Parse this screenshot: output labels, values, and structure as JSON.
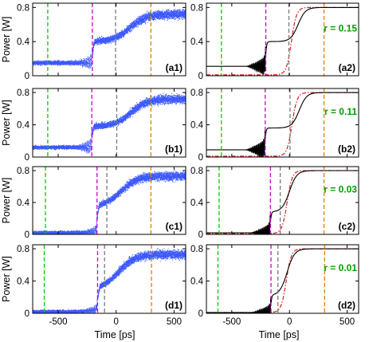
{
  "figure": {
    "ylabel": "Power [W]",
    "xlabel": "Time [ps]"
  },
  "colors": {
    "scatter": "#1a3cff",
    "simulation": "#000000",
    "reference": "#e81818",
    "marker_green": "#00cc00",
    "marker_magenta": "#cc00cc",
    "marker_gray": "#7a7a7a",
    "marker_orange": "#e08000"
  },
  "chart_data": {
    "type": "scatter",
    "xlim": [
      -720,
      600
    ],
    "ylim": [
      0,
      0.85
    ],
    "xticks": [
      -500,
      0,
      500
    ],
    "xtick_labels": [
      "-500",
      "0",
      "500"
    ],
    "yticks": [
      0,
      0.4,
      0.8
    ],
    "ytick_labels": [
      "0",
      "0.4",
      "0.8"
    ],
    "panels": [
      {
        "id": "a1",
        "label": "(a1)",
        "kind": "experiment",
        "markers": {
          "green": -590,
          "magenta": -205,
          "gray": -5,
          "orange": 300
        },
        "base": 0.15,
        "osc_amp": 0.08,
        "plateau": 0.4,
        "final": 0.72
      },
      {
        "id": "a2",
        "label": "(a2)",
        "kind": "simulation",
        "r_label": "r = 0.15",
        "markers": {
          "green": -590,
          "magenta": -205,
          "gray": -5,
          "orange": 300
        },
        "base": 0.11,
        "osc_amp": 0.12,
        "plateau": 0.4,
        "final": 0.8
      },
      {
        "id": "b1",
        "label": "(b1)",
        "kind": "experiment",
        "markers": {
          "green": -590,
          "magenta": -210,
          "gray": 5,
          "orange": 300
        },
        "base": 0.12,
        "osc_amp": 0.09,
        "plateau": 0.38,
        "final": 0.72
      },
      {
        "id": "b2",
        "label": "(b2)",
        "kind": "simulation",
        "r_label": "r = 0.11",
        "markers": {
          "green": -590,
          "magenta": -210,
          "gray": 5,
          "orange": 300
        },
        "base": 0.09,
        "osc_amp": 0.13,
        "plateau": 0.36,
        "final": 0.8
      },
      {
        "id": "c1",
        "label": "(c1)",
        "kind": "experiment",
        "markers": {
          "green": -610,
          "magenta": -165,
          "gray": -80,
          "orange": 300
        },
        "base": 0.02,
        "osc_amp": 0.06,
        "plateau": 0.35,
        "final": 0.73
      },
      {
        "id": "c2",
        "label": "(c2)",
        "kind": "simulation",
        "r_label": "r = 0.03",
        "markers": {
          "green": -610,
          "magenta": -165,
          "gray": -80,
          "orange": 300
        },
        "base": 0.02,
        "osc_amp": 0.12,
        "plateau": 0.28,
        "final": 0.8
      },
      {
        "id": "d1",
        "label": "(d1)",
        "kind": "experiment",
        "markers": {
          "green": -620,
          "magenta": -160,
          "gray": -100,
          "orange": 305
        },
        "base": 0.02,
        "osc_amp": 0.05,
        "plateau": 0.3,
        "final": 0.73
      },
      {
        "id": "d2",
        "label": "(d2)",
        "kind": "simulation",
        "r_label": "r = 0.01",
        "markers": {
          "green": -620,
          "magenta": -160,
          "gray": -100,
          "orange": 305
        },
        "base": 0.01,
        "osc_amp": 0.1,
        "plateau": 0.22,
        "final": 0.8
      }
    ]
  }
}
